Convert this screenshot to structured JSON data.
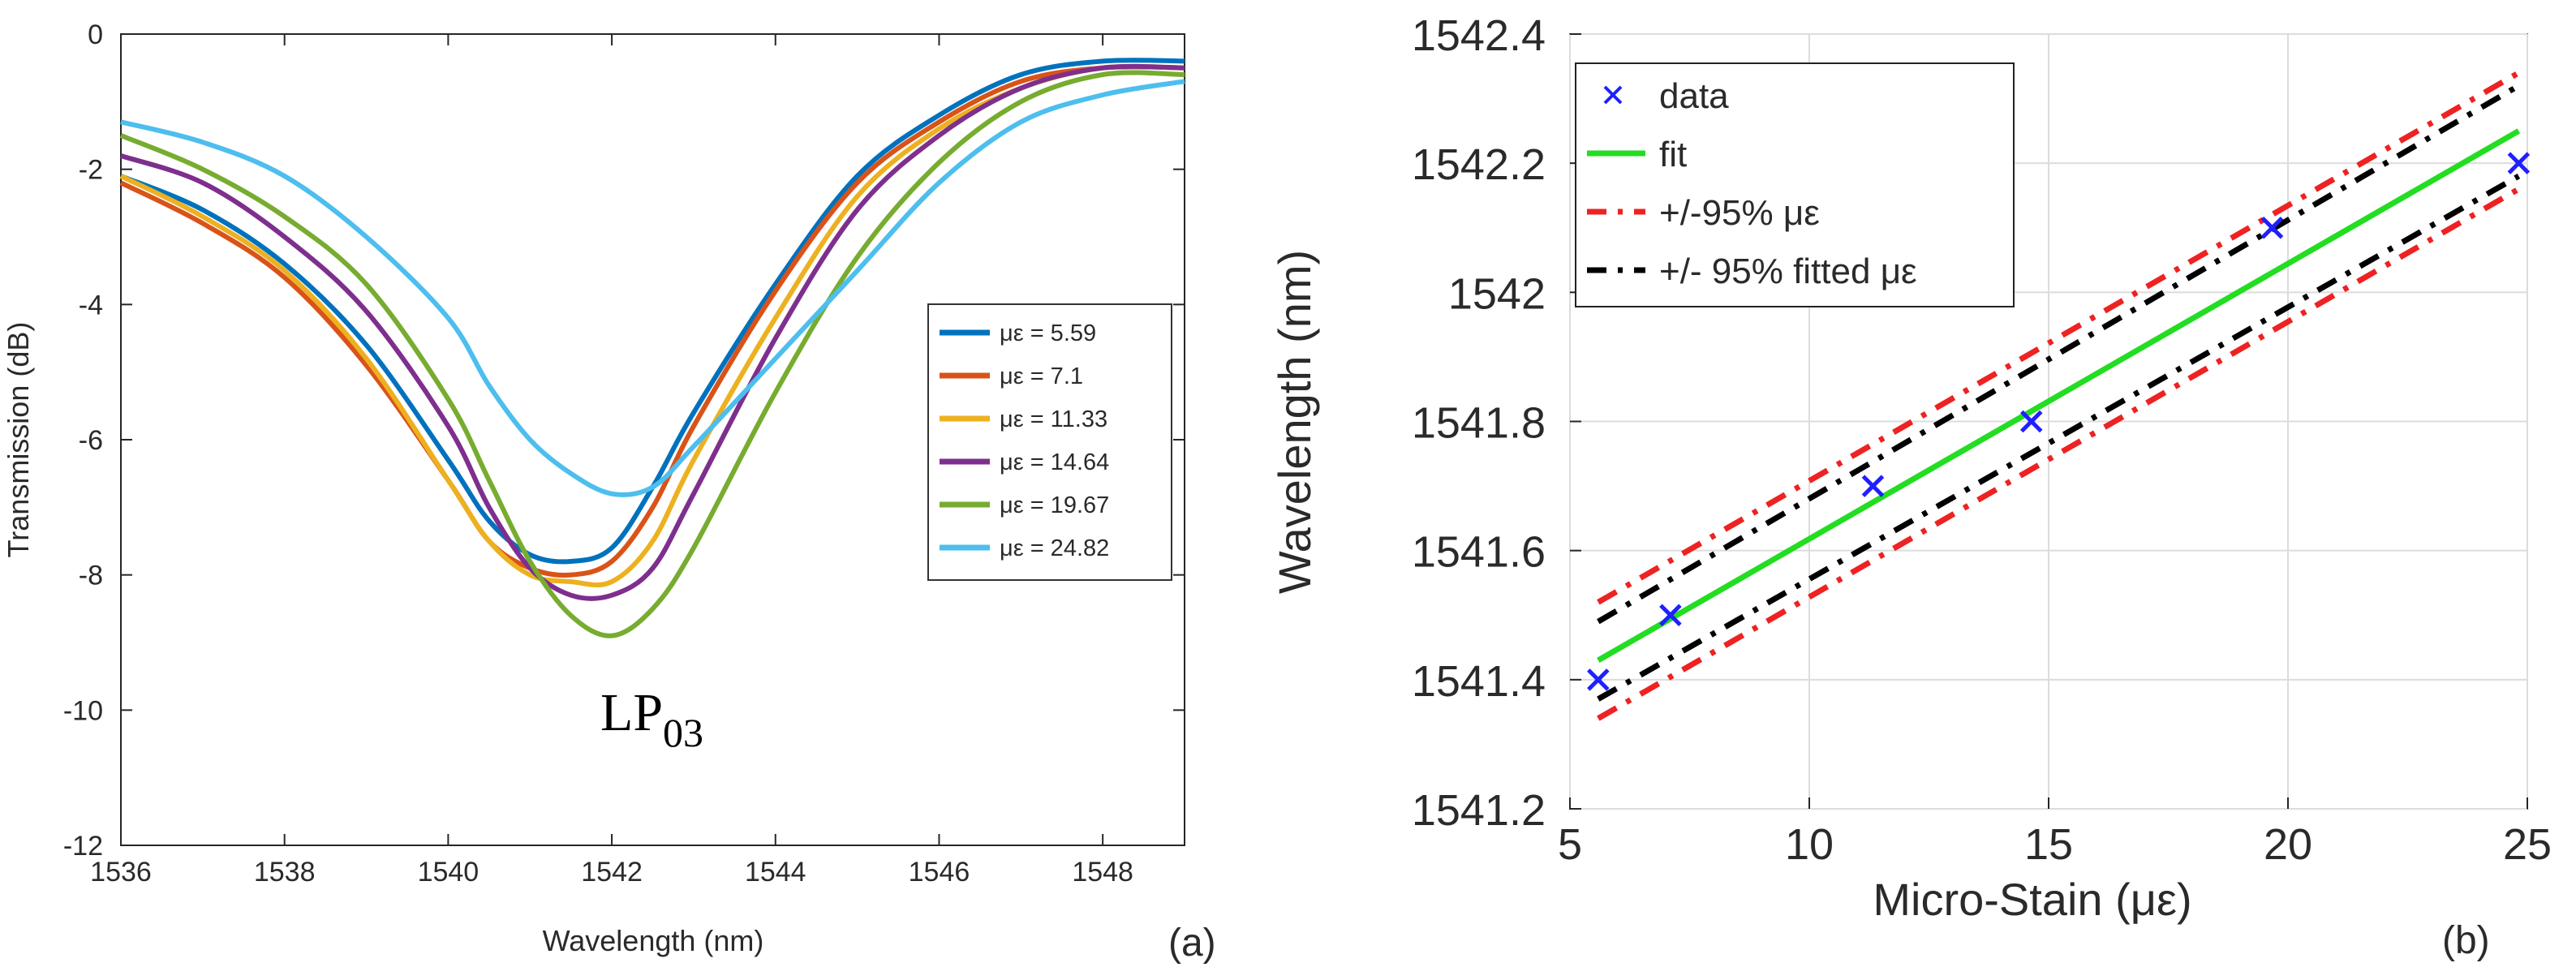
{
  "chart_data": [
    {
      "panel_label": "(a)",
      "type": "line",
      "title": "",
      "xlabel": "Wavelength (nm)",
      "ylabel": "Transmission (dB)",
      "xlim": [
        1536,
        1549
      ],
      "ylim": [
        -12,
        0
      ],
      "xticks": [
        "1536",
        "1538",
        "1540",
        "1542",
        "1544",
        "1546",
        "1548"
      ],
      "yticks": [
        "0",
        "-2",
        "-4",
        "-6",
        "-8",
        "-10",
        "-12"
      ],
      "annotation": {
        "main": "LP",
        "subscript": "03"
      },
      "legend_position": "right",
      "series": [
        {
          "name": "με = 5.59",
          "color": "#0072BD",
          "x": [
            1536,
            1537,
            1538,
            1539,
            1540,
            1540.5,
            1541,
            1541.5,
            1542,
            1542.5,
            1543,
            1544,
            1545,
            1546,
            1547,
            1548,
            1549
          ],
          "y": [
            -2.1,
            -2.6,
            -3.4,
            -4.6,
            -6.3,
            -7.2,
            -7.7,
            -7.8,
            -7.6,
            -6.7,
            -5.6,
            -3.7,
            -2.1,
            -1.2,
            -0.6,
            -0.4,
            -0.4
          ]
        },
        {
          "name": "με = 7.1",
          "color": "#D95319",
          "x": [
            1536,
            1537,
            1538,
            1539,
            1540,
            1540.5,
            1541,
            1541.5,
            1542,
            1542.5,
            1543,
            1544,
            1545,
            1546,
            1547,
            1548,
            1549
          ],
          "y": [
            -2.2,
            -2.8,
            -3.6,
            -4.9,
            -6.6,
            -7.5,
            -7.9,
            -8.0,
            -7.8,
            -7.0,
            -5.8,
            -3.8,
            -2.2,
            -1.3,
            -0.7,
            -0.5,
            -0.5
          ]
        },
        {
          "name": "με = 11.33",
          "color": "#EDB120",
          "x": [
            1536,
            1537,
            1538,
            1539,
            1540,
            1540.5,
            1541,
            1541.5,
            1542,
            1542.5,
            1543,
            1544,
            1545,
            1546,
            1547,
            1548,
            1549
          ],
          "y": [
            -2.1,
            -2.7,
            -3.5,
            -4.8,
            -6.6,
            -7.5,
            -8.0,
            -8.1,
            -8.1,
            -7.5,
            -6.3,
            -4.2,
            -2.4,
            -1.4,
            -0.8,
            -0.5,
            -0.5
          ]
        },
        {
          "name": "με = 14.64",
          "color": "#7E2F8E",
          "x": [
            1536,
            1537,
            1538,
            1539,
            1540,
            1540.5,
            1541,
            1541.5,
            1542,
            1542.5,
            1543,
            1544,
            1545,
            1546,
            1547,
            1548,
            1549
          ],
          "y": [
            -1.8,
            -2.2,
            -3.0,
            -4.1,
            -5.8,
            -7.0,
            -7.9,
            -8.3,
            -8.3,
            -7.9,
            -6.8,
            -4.5,
            -2.6,
            -1.5,
            -0.8,
            -0.5,
            -0.5
          ]
        },
        {
          "name": "με = 19.67",
          "color": "#77AC30",
          "x": [
            1536,
            1537,
            1538,
            1539,
            1540,
            1540.5,
            1541,
            1541.5,
            1542,
            1542.5,
            1543,
            1544,
            1545,
            1546,
            1547,
            1548,
            1549
          ],
          "y": [
            -1.5,
            -2.0,
            -2.7,
            -3.7,
            -5.4,
            -6.6,
            -7.8,
            -8.6,
            -8.9,
            -8.5,
            -7.6,
            -5.3,
            -3.3,
            -1.9,
            -1.0,
            -0.6,
            -0.6
          ]
        },
        {
          "name": "με = 24.82",
          "color": "#4DBEEE",
          "x": [
            1536,
            1537,
            1538,
            1539,
            1540,
            1540.5,
            1541,
            1541.5,
            1542,
            1542.5,
            1543,
            1544,
            1545,
            1546,
            1547,
            1548,
            1549
          ],
          "y": [
            -1.3,
            -1.6,
            -2.1,
            -3.0,
            -4.2,
            -5.2,
            -6.0,
            -6.5,
            -6.8,
            -6.7,
            -6.1,
            -4.8,
            -3.5,
            -2.2,
            -1.3,
            -0.9,
            -0.7
          ]
        }
      ]
    },
    {
      "panel_label": "(b)",
      "type": "scatter",
      "title": "",
      "xlabel": "Micro-Stain (με)",
      "ylabel": "Wavelength (nm)",
      "xlim": [
        5,
        25
      ],
      "ylim": [
        1541.2,
        1542.4
      ],
      "xticks": [
        "5",
        "10",
        "15",
        "20",
        "25"
      ],
      "yticks": [
        "1542.4",
        "1542.2",
        "1542",
        "1541.8",
        "1541.6",
        "1541.4",
        "1541.2"
      ],
      "legend_position": "top-left",
      "legend": [
        {
          "label": "data",
          "color": "#1f1fff",
          "style": "marker-x"
        },
        {
          "label": "fit",
          "color": "#22dd22",
          "style": "solid"
        },
        {
          "label": "+/-95% με",
          "color": "#ee2222",
          "style": "dash-dot"
        },
        {
          "label": "+/- 95% fitted με",
          "color": "#000000",
          "style": "dash-dot"
        }
      ],
      "data_points": {
        "x": [
          5.59,
          7.1,
          11.33,
          14.64,
          19.67,
          24.82
        ],
        "y": [
          1541.4,
          1541.5,
          1541.7,
          1541.8,
          1542.1,
          1542.2
        ]
      },
      "fit": {
        "x": [
          5.59,
          24.82
        ],
        "y": [
          1541.43,
          1542.25
        ]
      },
      "bounds_95_ue": {
        "upper": {
          "x": [
            5.59,
            24.82
          ],
          "y": [
            1541.52,
            1542.34
          ]
        },
        "lower": {
          "x": [
            5.59,
            24.82
          ],
          "y": [
            1541.34,
            1542.16
          ]
        }
      },
      "bounds_95_fitted_ue": {
        "upper": {
          "x": [
            5.59,
            24.82
          ],
          "y": [
            1541.49,
            1542.32
          ]
        },
        "lower": {
          "x": [
            5.59,
            24.82
          ],
          "y": [
            1541.37,
            1542.18
          ]
        }
      }
    }
  ]
}
